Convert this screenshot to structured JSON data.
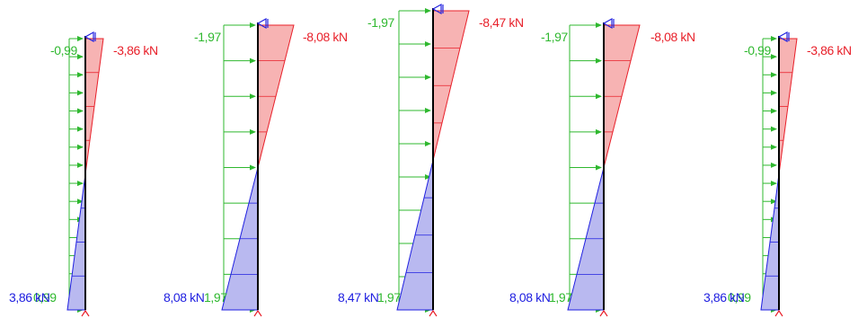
{
  "colors": {
    "load": "#2fb82f",
    "negative_line": "#e8202a",
    "negative_fill": "#f7b3b3",
    "positive_line": "#2020e0",
    "positive_fill": "#b9b9f0",
    "member": "#000000",
    "support": "#2020e0"
  },
  "columns": [
    {
      "load_top": "-0,99",
      "load_bottom": "0,99",
      "force_top": "-3,86 kN",
      "force_bottom": "3,86 kN",
      "force_value": 3.86
    },
    {
      "load_top": "-1,97",
      "load_bottom": "1,97",
      "force_top": "-8,08 kN",
      "force_bottom": "8,08 kN",
      "force_value": 8.08
    },
    {
      "load_top": "-1,97",
      "load_bottom": "1,97",
      "force_top": "-8,47 kN",
      "force_bottom": "8,47 kN",
      "force_value": 8.47
    },
    {
      "load_top": "-1,97",
      "load_bottom": "1,97",
      "force_top": "-8,08 kN",
      "force_bottom": "8,08 kN",
      "force_value": 8.08
    },
    {
      "load_top": "-0,99",
      "load_bottom": "0,99",
      "force_top": "-3,86 kN",
      "force_bottom": "3,86 kN",
      "force_value": 3.86
    }
  ]
}
